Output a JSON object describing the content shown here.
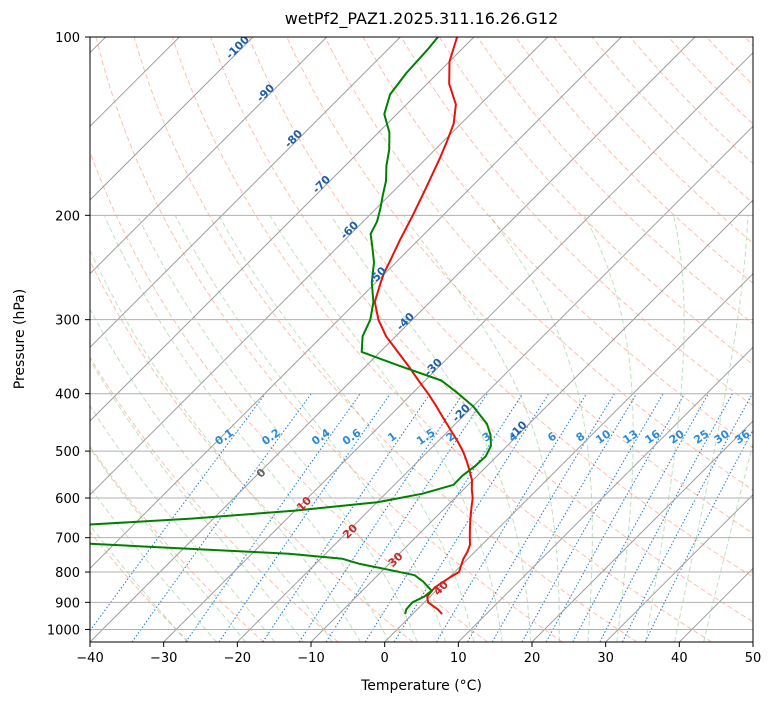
{
  "chart_data": {
    "type": "line",
    "title": "wetPf2_PAZ1.2025.311.16.26.G12",
    "xlabel": "Temperature (°C)",
    "ylabel": "Pressure (hPa)",
    "xlim": [
      -40,
      50
    ],
    "ylim": [
      1050,
      100
    ],
    "y_scale": "log",
    "grid": true,
    "x_ticks": [
      -40,
      -30,
      -20,
      -10,
      0,
      10,
      20,
      30,
      40,
      50
    ],
    "y_ticks": [
      100,
      200,
      300,
      400,
      500,
      600,
      700,
      800,
      900,
      1000
    ],
    "skew": "temperature lines slanted 45°",
    "series": [
      {
        "name": "",
        "color": "#e8120c",
        "pressure": [
          942,
          925,
          900,
          880,
          850,
          820,
          800,
          780,
          760,
          740,
          720,
          700,
          680,
          660,
          640,
          620,
          600,
          580,
          560,
          540,
          520,
          500,
          480,
          460,
          440,
          420,
          400,
          380,
          360,
          340,
          320,
          300,
          280,
          260,
          250,
          240,
          220,
          200,
          180,
          160,
          150,
          140,
          130,
          120,
          110,
          100
        ],
        "temperature": [
          4.0,
          2.8,
          0.5,
          -0.4,
          -0.6,
          0.0,
          0.6,
          0.0,
          -0.6,
          -1.0,
          -1.6,
          -2.6,
          -3.6,
          -4.6,
          -5.6,
          -6.6,
          -7.6,
          -8.9,
          -10.1,
          -11.7,
          -13.4,
          -15.3,
          -17.5,
          -19.9,
          -22.4,
          -25.0,
          -27.8,
          -30.9,
          -34.1,
          -37.6,
          -41.3,
          -44.6,
          -47.5,
          -49.3,
          -50.2,
          -50.9,
          -52.5,
          -54.1,
          -56.0,
          -58.2,
          -59.5,
          -61.0,
          -63.3,
          -67.0,
          -70.0,
          -72.3
        ]
      },
      {
        "name": "",
        "color": "#008000",
        "pressure": [
          942,
          925,
          900,
          880,
          860,
          845,
          830,
          810,
          790,
          775,
          760,
          745,
          735,
          725,
          715,
          705,
          695,
          685,
          670,
          650,
          630,
          610,
          590,
          570,
          550,
          530,
          510,
          490,
          470,
          450,
          420,
          400,
          380,
          360,
          340,
          320,
          300,
          280,
          260,
          240,
          225,
          215,
          205,
          195,
          185,
          175,
          165,
          155,
          145,
          135,
          125,
          115,
          105,
          100
        ],
        "temperature": [
          -1.0,
          -1.5,
          -1.6,
          -0.8,
          -0.6,
          -1.8,
          -3.0,
          -5.0,
          -10.0,
          -14.0,
          -17.0,
          -25.0,
          -35.0,
          -45.0,
          -55.0,
          -63.0,
          -67.0,
          -66.0,
          -60.0,
          -43.0,
          -30.0,
          -20.0,
          -15.0,
          -12.0,
          -12.0,
          -11.6,
          -11.5,
          -12.2,
          -13.7,
          -15.7,
          -20.0,
          -23.7,
          -27.8,
          -35.1,
          -42.5,
          -44.5,
          -45.7,
          -47.7,
          -50.5,
          -53.0,
          -55.5,
          -57.3,
          -58.1,
          -59.4,
          -60.9,
          -62.4,
          -64.4,
          -66.2,
          -68.5,
          -71.7,
          -73.6,
          -74.3,
          -74.6,
          -74.9
        ]
      }
    ],
    "dry_adiabat_labels": [
      "-100",
      "-90",
      "-80",
      "-70",
      "-60",
      "-50",
      "-40",
      "-30",
      "-20",
      "-10",
      "0",
      "10",
      "20",
      "30",
      "40"
    ],
    "mixing_ratio_labels": [
      "0.1",
      "0.2",
      "0.4",
      "0.6",
      "1",
      "1.5",
      "2",
      "3",
      "4",
      "6",
      "8",
      "10",
      "13",
      "16",
      "20",
      "25",
      "30",
      "36"
    ]
  }
}
